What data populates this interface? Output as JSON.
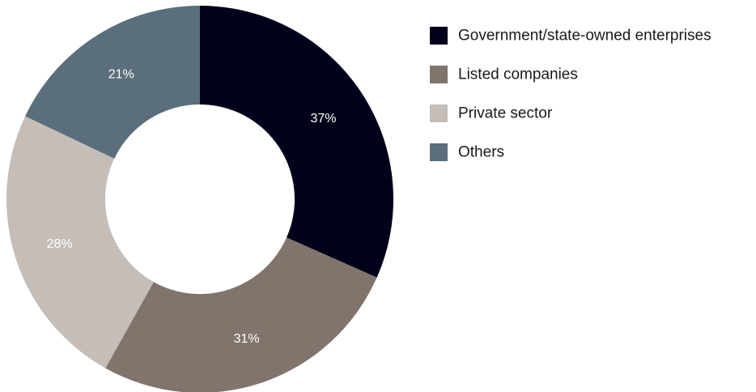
{
  "chart_data": {
    "type": "pie",
    "variant": "donut",
    "title": "",
    "categories": [
      "Government/state-owned enterprises",
      "Listed companies",
      "Private sector",
      "Others"
    ],
    "values": [
      37,
      31,
      28,
      21
    ],
    "value_labels": [
      "37%",
      "31%",
      "28%",
      "21%"
    ],
    "colors": [
      "#02011a",
      "#80746c",
      "#c4bdb8",
      "#5b6e7b"
    ],
    "legend_position": "right",
    "start_angle": "12 o'clock",
    "direction": "clockwise"
  }
}
